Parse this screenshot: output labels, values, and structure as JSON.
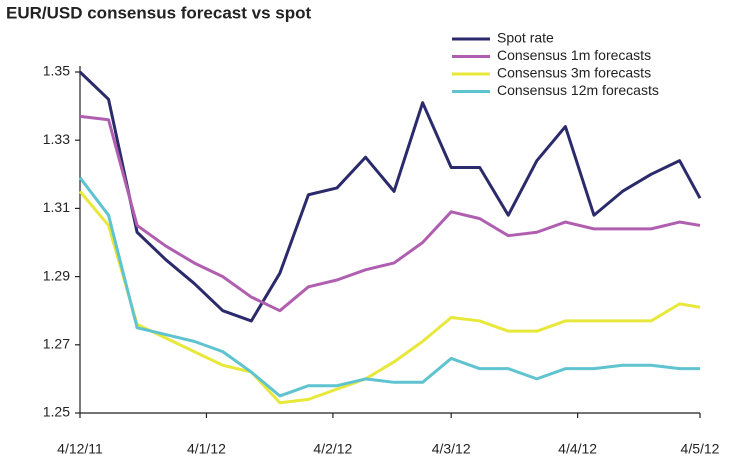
{
  "chart_data": {
    "type": "line",
    "title": "EUR/USD consensus forecast vs spot",
    "x": [
      "4/12/11",
      "11/12/11",
      "18/12/11",
      "25/12/11",
      "1/1/12",
      "8/1/12",
      "15/1/12",
      "22/1/12",
      "29/1/12",
      "5/2/12",
      "12/2/12",
      "19/2/12",
      "26/2/12",
      "4/3/12",
      "11/3/12",
      "18/3/12",
      "25/3/12",
      "1/4/12",
      "8/4/12",
      "15/4/12",
      "22/4/12",
      "29/4/12",
      "4/5/12"
    ],
    "series": [
      {
        "name": "Spot rate",
        "color": "#2b2a6b",
        "values": [
          1.35,
          1.342,
          1.303,
          1.295,
          1.288,
          1.28,
          1.277,
          1.291,
          1.314,
          1.316,
          1.325,
          1.315,
          1.341,
          1.322,
          1.322,
          1.308,
          1.324,
          1.334,
          1.308,
          1.315,
          1.32,
          1.324,
          1.313
        ]
      },
      {
        "name": "Consensus 1m forecasts",
        "color": "#b05fb0",
        "values": [
          1.337,
          1.336,
          1.305,
          1.299,
          1.294,
          1.29,
          1.284,
          1.28,
          1.287,
          1.289,
          1.292,
          1.294,
          1.3,
          1.309,
          1.307,
          1.302,
          1.303,
          1.306,
          1.304,
          1.304,
          1.304,
          1.306,
          1.305
        ]
      },
      {
        "name": "Consensus 3m forecasts",
        "color": "#e8e83a",
        "values": [
          1.315,
          1.305,
          1.276,
          1.272,
          1.268,
          1.264,
          1.262,
          1.253,
          1.254,
          1.257,
          1.26,
          1.265,
          1.271,
          1.278,
          1.277,
          1.274,
          1.274,
          1.277,
          1.277,
          1.277,
          1.277,
          1.282,
          1.281
        ]
      },
      {
        "name": "Consensus 12m forecasts",
        "color": "#5fc4d0",
        "values": [
          1.319,
          1.308,
          1.275,
          1.273,
          1.271,
          1.268,
          1.262,
          1.255,
          1.258,
          1.258,
          1.26,
          1.259,
          1.259,
          1.266,
          1.263,
          1.263,
          1.26,
          1.263,
          1.263,
          1.264,
          1.264,
          1.263,
          1.263
        ]
      }
    ],
    "xlim": [
      "4/12/11",
      "4/5/12"
    ],
    "xticks": [
      "4/12/11",
      "4/1/12",
      "4/2/12",
      "4/3/12",
      "4/4/12",
      "4/5/12"
    ],
    "ylim": [
      1.25,
      1.35
    ],
    "yticks": [
      1.25,
      1.27,
      1.29,
      1.31,
      1.33,
      1.35
    ],
    "grid": false,
    "legend": "top-right"
  }
}
